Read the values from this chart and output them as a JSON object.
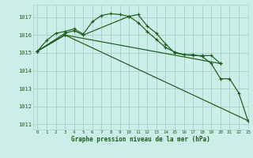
{
  "title": "Graphe pression niveau de la mer (hPa)",
  "background_color": "#cceee8",
  "grid_color": "#aad4cc",
  "line_color": "#1a5c1a",
  "xlim": [
    -0.5,
    23
  ],
  "ylim": [
    1010.7,
    1017.7
  ],
  "yticks": [
    1011,
    1012,
    1013,
    1014,
    1015,
    1016,
    1017
  ],
  "xticks": [
    0,
    1,
    2,
    3,
    4,
    5,
    6,
    7,
    8,
    9,
    10,
    11,
    12,
    13,
    14,
    15,
    16,
    17,
    18,
    19,
    20,
    21,
    22,
    23
  ],
  "series": [
    {
      "x": [
        0,
        1,
        2,
        3,
        4,
        5,
        6,
        7,
        8,
        9,
        10,
        11,
        12,
        13,
        14,
        15,
        16,
        17,
        18,
        19,
        20,
        21,
        22,
        23
      ],
      "y": [
        1015.1,
        1015.7,
        1016.1,
        1016.2,
        1016.35,
        1016.05,
        1016.75,
        1017.1,
        1017.2,
        1017.15,
        1017.05,
        1017.15,
        1016.5,
        1016.1,
        1015.5,
        1015.0,
        1014.9,
        1014.9,
        1014.8,
        1014.4,
        1013.55,
        1013.55,
        1012.75,
        1011.2
      ]
    },
    {
      "x": [
        0,
        3,
        4,
        5,
        10,
        11,
        12,
        13,
        14,
        15,
        16,
        17,
        18,
        19,
        20
      ],
      "y": [
        1015.1,
        1016.1,
        1016.25,
        1016.0,
        1017.05,
        1016.7,
        1016.2,
        1015.75,
        1015.3,
        1015.05,
        1014.9,
        1014.85,
        1014.85,
        1014.85,
        1014.4
      ]
    },
    {
      "x": [
        0,
        3,
        20
      ],
      "y": [
        1015.1,
        1016.0,
        1014.4
      ]
    },
    {
      "x": [
        0,
        3,
        23
      ],
      "y": [
        1015.1,
        1016.0,
        1011.2
      ]
    }
  ]
}
